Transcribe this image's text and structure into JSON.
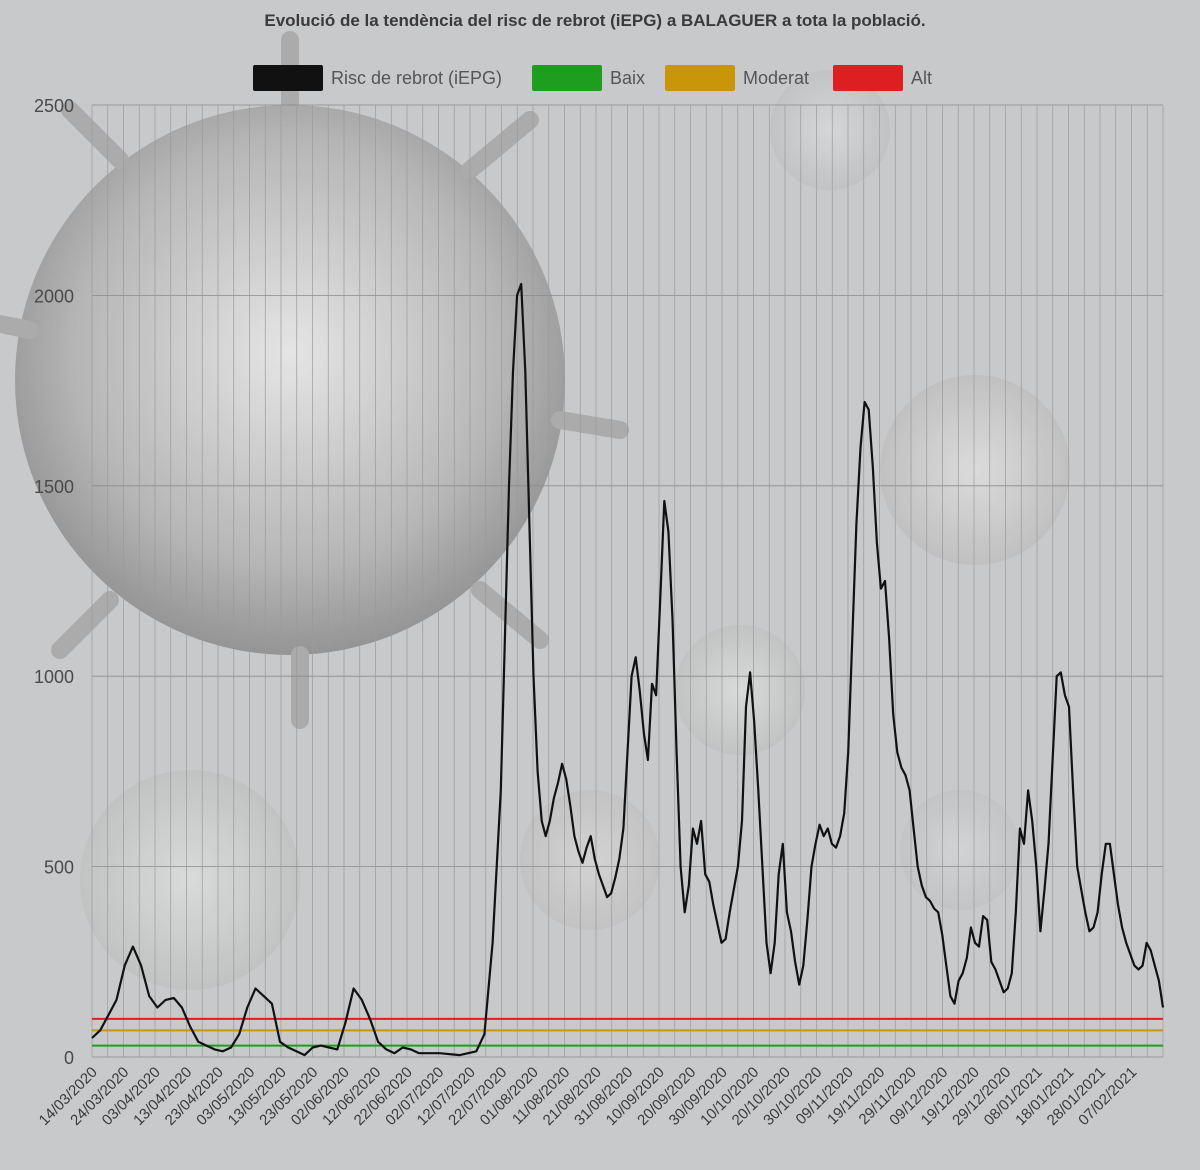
{
  "chart_data": {
    "type": "line",
    "title": "Evolució de la tendència del risc de rebrot (iEPG) a BALAGUER a tota la població.",
    "xlabel": "",
    "ylabel": "",
    "ylim": [
      0,
      2500
    ],
    "yticks": [
      0,
      500,
      1000,
      1500,
      2000,
      2500
    ],
    "grid": true,
    "legend_position": "top",
    "x_tick_labels": [
      "14/03/2020",
      "24/03/2020",
      "03/04/2020",
      "13/04/2020",
      "23/04/2020",
      "03/05/2020",
      "13/05/2020",
      "23/05/2020",
      "02/06/2020",
      "12/06/2020",
      "22/06/2020",
      "02/07/2020",
      "12/07/2020",
      "22/07/2020",
      "01/08/2020",
      "11/08/2020",
      "21/08/2020",
      "31/08/2020",
      "10/09/2020",
      "20/09/2020",
      "30/09/2020",
      "10/10/2020",
      "20/10/2020",
      "30/10/2020",
      "09/11/2020",
      "19/11/2020",
      "29/11/2020",
      "09/12/2020",
      "19/12/2020",
      "29/12/2020",
      "08/01/2021",
      "18/01/2021",
      "28/01/2021",
      "07/02/2021"
    ],
    "series": [
      {
        "name": "Risc de rebrot (iEPG)",
        "color": "#111111",
        "points": [
          [
            0,
            50
          ],
          [
            2,
            70
          ],
          [
            4,
            110
          ],
          [
            6,
            150
          ],
          [
            8,
            240
          ],
          [
            10,
            290
          ],
          [
            12,
            240
          ],
          [
            14,
            160
          ],
          [
            16,
            130
          ],
          [
            18,
            150
          ],
          [
            20,
            155
          ],
          [
            22,
            130
          ],
          [
            24,
            80
          ],
          [
            26,
            40
          ],
          [
            28,
            30
          ],
          [
            30,
            20
          ],
          [
            32,
            15
          ],
          [
            34,
            25
          ],
          [
            36,
            60
          ],
          [
            38,
            130
          ],
          [
            40,
            180
          ],
          [
            42,
            160
          ],
          [
            44,
            140
          ],
          [
            46,
            40
          ],
          [
            48,
            25
          ],
          [
            50,
            15
          ],
          [
            52,
            5
          ],
          [
            54,
            25
          ],
          [
            56,
            30
          ],
          [
            58,
            25
          ],
          [
            60,
            20
          ],
          [
            62,
            90
          ],
          [
            64,
            180
          ],
          [
            66,
            150
          ],
          [
            68,
            100
          ],
          [
            70,
            40
          ],
          [
            72,
            20
          ],
          [
            74,
            10
          ],
          [
            76,
            25
          ],
          [
            78,
            20
          ],
          [
            80,
            10
          ],
          [
            85,
            10
          ],
          [
            90,
            5
          ],
          [
            94,
            15
          ],
          [
            96,
            60
          ],
          [
            98,
            300
          ],
          [
            100,
            700
          ],
          [
            101,
            1100
          ],
          [
            102,
            1500
          ],
          [
            103,
            1800
          ],
          [
            104,
            2000
          ],
          [
            105,
            2030
          ],
          [
            106,
            1800
          ],
          [
            107,
            1400
          ],
          [
            108,
            1000
          ],
          [
            109,
            750
          ],
          [
            110,
            620
          ],
          [
            111,
            580
          ],
          [
            112,
            620
          ],
          [
            113,
            680
          ],
          [
            114,
            720
          ],
          [
            115,
            770
          ],
          [
            116,
            730
          ],
          [
            117,
            660
          ],
          [
            118,
            580
          ],
          [
            119,
            540
          ],
          [
            120,
            510
          ],
          [
            121,
            550
          ],
          [
            122,
            580
          ],
          [
            123,
            520
          ],
          [
            124,
            480
          ],
          [
            125,
            450
          ],
          [
            126,
            420
          ],
          [
            127,
            430
          ],
          [
            128,
            470
          ],
          [
            129,
            520
          ],
          [
            130,
            600
          ],
          [
            131,
            800
          ],
          [
            132,
            1000
          ],
          [
            133,
            1050
          ],
          [
            134,
            960
          ],
          [
            135,
            850
          ],
          [
            136,
            780
          ],
          [
            137,
            980
          ],
          [
            138,
            950
          ],
          [
            139,
            1200
          ],
          [
            140,
            1460
          ],
          [
            141,
            1380
          ],
          [
            142,
            1150
          ],
          [
            143,
            800
          ],
          [
            144,
            500
          ],
          [
            145,
            380
          ],
          [
            146,
            450
          ],
          [
            147,
            600
          ],
          [
            148,
            560
          ],
          [
            149,
            620
          ],
          [
            150,
            480
          ],
          [
            151,
            460
          ],
          [
            152,
            400
          ],
          [
            153,
            350
          ],
          [
            154,
            300
          ],
          [
            155,
            310
          ],
          [
            156,
            380
          ],
          [
            157,
            440
          ],
          [
            158,
            500
          ],
          [
            159,
            620
          ],
          [
            160,
            920
          ],
          [
            161,
            1010
          ],
          [
            162,
            880
          ],
          [
            163,
            700
          ],
          [
            164,
            500
          ],
          [
            165,
            300
          ],
          [
            166,
            220
          ],
          [
            167,
            300
          ],
          [
            168,
            480
          ],
          [
            169,
            560
          ],
          [
            170,
            380
          ],
          [
            171,
            330
          ],
          [
            172,
            250
          ],
          [
            173,
            190
          ],
          [
            174,
            240
          ],
          [
            175,
            360
          ],
          [
            176,
            500
          ],
          [
            177,
            560
          ],
          [
            178,
            610
          ],
          [
            179,
            580
          ],
          [
            180,
            600
          ],
          [
            181,
            560
          ],
          [
            182,
            550
          ],
          [
            183,
            580
          ],
          [
            184,
            640
          ],
          [
            185,
            800
          ],
          [
            186,
            1100
          ],
          [
            187,
            1400
          ],
          [
            188,
            1600
          ],
          [
            189,
            1720
          ],
          [
            190,
            1700
          ],
          [
            191,
            1550
          ],
          [
            192,
            1350
          ],
          [
            193,
            1230
          ],
          [
            194,
            1250
          ],
          [
            195,
            1100
          ],
          [
            196,
            900
          ],
          [
            197,
            800
          ],
          [
            198,
            760
          ],
          [
            199,
            740
          ],
          [
            200,
            700
          ],
          [
            201,
            600
          ],
          [
            202,
            500
          ],
          [
            203,
            450
          ],
          [
            204,
            420
          ],
          [
            205,
            410
          ],
          [
            206,
            390
          ],
          [
            207,
            380
          ],
          [
            208,
            320
          ],
          [
            209,
            240
          ],
          [
            210,
            160
          ],
          [
            211,
            140
          ],
          [
            212,
            200
          ],
          [
            213,
            220
          ],
          [
            214,
            260
          ],
          [
            215,
            340
          ],
          [
            216,
            300
          ],
          [
            217,
            290
          ],
          [
            218,
            370
          ],
          [
            219,
            360
          ],
          [
            220,
            250
          ],
          [
            221,
            230
          ],
          [
            222,
            200
          ],
          [
            223,
            170
          ],
          [
            224,
            180
          ],
          [
            225,
            220
          ],
          [
            226,
            380
          ],
          [
            227,
            600
          ],
          [
            228,
            560
          ],
          [
            229,
            700
          ],
          [
            230,
            620
          ],
          [
            231,
            500
          ],
          [
            232,
            330
          ],
          [
            233,
            440
          ],
          [
            234,
            560
          ],
          [
            235,
            780
          ],
          [
            236,
            1000
          ],
          [
            237,
            1010
          ],
          [
            238,
            950
          ],
          [
            239,
            920
          ],
          [
            240,
            700
          ],
          [
            241,
            500
          ],
          [
            242,
            440
          ],
          [
            243,
            380
          ],
          [
            244,
            330
          ],
          [
            245,
            340
          ],
          [
            246,
            380
          ],
          [
            247,
            480
          ],
          [
            248,
            560
          ],
          [
            249,
            560
          ],
          [
            250,
            480
          ],
          [
            251,
            400
          ],
          [
            252,
            340
          ],
          [
            253,
            300
          ],
          [
            254,
            270
          ],
          [
            255,
            240
          ],
          [
            256,
            230
          ],
          [
            257,
            240
          ],
          [
            258,
            300
          ],
          [
            259,
            280
          ],
          [
            260,
            240
          ],
          [
            261,
            200
          ],
          [
            262,
            130
          ]
        ]
      },
      {
        "name": "Baix",
        "color": "#1e9e1e",
        "constant": 30
      },
      {
        "name": "Moderat",
        "color": "#c9960a",
        "constant": 70
      },
      {
        "name": "Alt",
        "color": "#dd1f1f",
        "constant": 100
      }
    ]
  }
}
